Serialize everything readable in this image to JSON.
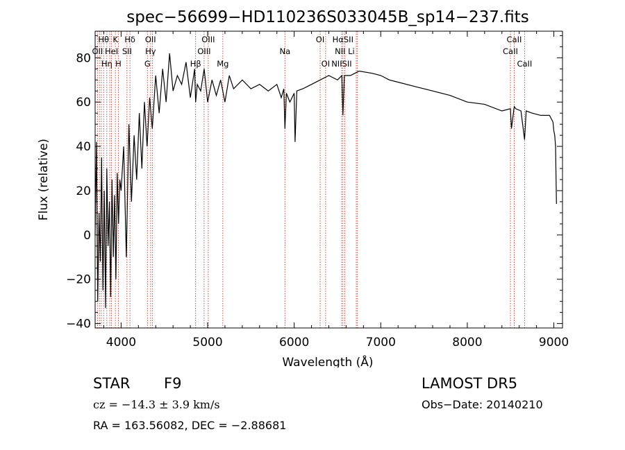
{
  "chart_data": {
    "type": "line",
    "title": "spec−56699−HD110236S033045B_sp14−237.fits",
    "xlabel": "Wavelength (Å)",
    "ylabel": "Flux (relative)",
    "xlim": [
      3700,
      9100
    ],
    "ylim": [
      -42,
      92
    ],
    "x_ticks": [
      4000,
      5000,
      6000,
      7000,
      8000,
      9000
    ],
    "y_ticks": [
      -40,
      -20,
      0,
      20,
      40,
      60,
      80
    ],
    "grid": false,
    "series": [
      {
        "x": [
          3700,
          3715,
          3730,
          3745,
          3760,
          3775,
          3790,
          3805,
          3820,
          3835,
          3850,
          3865,
          3880,
          3895,
          3910,
          3925,
          3940,
          3955,
          3970,
          3985,
          4000,
          4030,
          4060,
          4090,
          4120,
          4150,
          4180,
          4210,
          4240,
          4270,
          4300,
          4330,
          4360,
          4400,
          4440,
          4480,
          4520,
          4560,
          4600,
          4650,
          4700,
          4750,
          4800,
          4850,
          4861,
          4880,
          4920,
          4960,
          5000,
          5050,
          5100,
          5150,
          5200,
          5250,
          5300,
          5400,
          5500,
          5600,
          5700,
          5800,
          5850,
          5880,
          5893,
          5910,
          5950,
          6000,
          6010,
          6030,
          6100,
          6200,
          6300,
          6400,
          6500,
          6550,
          6563,
          6580,
          6650,
          6750,
          6900,
          7000,
          7100,
          7200,
          7400,
          7600,
          7800,
          8000,
          8200,
          8400,
          8498,
          8510,
          8542,
          8560,
          8620,
          8662,
          8680,
          8750,
          8850,
          8900,
          8950,
          8990,
          9000,
          9010,
          9020,
          9030
        ],
        "y": [
          0,
          42,
          -30,
          10,
          -12,
          35,
          -25,
          20,
          -33,
          30,
          -5,
          15,
          -28,
          25,
          -10,
          18,
          -20,
          28,
          5,
          25,
          20,
          40,
          -10,
          50,
          15,
          45,
          25,
          55,
          30,
          60,
          40,
          62,
          48,
          72,
          55,
          75,
          60,
          82,
          65,
          72,
          68,
          78,
          62,
          75,
          60,
          68,
          65,
          75,
          60,
          70,
          63,
          70,
          60,
          72,
          66,
          70,
          66,
          68,
          65,
          68,
          62,
          66,
          48,
          64,
          60,
          64,
          42,
          65,
          66,
          68,
          70,
          72,
          70,
          72,
          54,
          72,
          72,
          74,
          73,
          72,
          70,
          69,
          67,
          65,
          63,
          60,
          59,
          56,
          57,
          48,
          58,
          57,
          56,
          43,
          56,
          55,
          54,
          54,
          54,
          51,
          47,
          45,
          40,
          14
        ]
      }
    ],
    "line_markers": [
      {
        "label": "Hθ",
        "x": 3798,
        "row": 1
      },
      {
        "label": "K",
        "x": 3934,
        "row": 1
      },
      {
        "label": "Hδ",
        "x": 4102,
        "row": 1
      },
      {
        "label": "OII",
        "x": 4340,
        "row": 1
      },
      {
        "label": "OIII",
        "x": 5007,
        "row": 1
      },
      {
        "label": "OI",
        "x": 6300,
        "row": 1
      },
      {
        "label": "HαSII",
        "x": 6563,
        "row": 1
      },
      {
        "label": "CaII",
        "x": 8542,
        "row": 1
      },
      {
        "label": "OII",
        "x": 3727,
        "row": 2
      },
      {
        "label": "HeI",
        "x": 3889,
        "row": 2
      },
      {
        "label": "SII",
        "x": 4068,
        "row": 2
      },
      {
        "label": "Hγ",
        "x": 4341,
        "row": 2
      },
      {
        "label": "OIII",
        "x": 4959,
        "row": 2
      },
      {
        "label": "Na",
        "x": 5893,
        "row": 2
      },
      {
        "label": "NII Li",
        "x": 6584,
        "row": 2
      },
      {
        "label": "CaII",
        "x": 8498,
        "row": 2
      },
      {
        "label": "Hη",
        "x": 3835,
        "row": 3
      },
      {
        "label": "H",
        "x": 3968,
        "row": 3
      },
      {
        "label": "G",
        "x": 4304,
        "row": 3
      },
      {
        "label": "Hβ",
        "x": 4861,
        "row": 3
      },
      {
        "label": "Mg",
        "x": 5175,
        "row": 3
      },
      {
        "label": "OI",
        "x": 6363,
        "row": 3
      },
      {
        "label": "NIISII",
        "x": 6548,
        "row": 3
      },
      {
        "label": "CaII",
        "x": 8662,
        "row": 3
      }
    ],
    "line_x": [
      3727,
      3750,
      3771,
      3798,
      3835,
      3869,
      3889,
      3934,
      3968,
      4068,
      4102,
      4304,
      4341,
      4363,
      4861,
      4959,
      5007,
      5175,
      5893,
      6300,
      6363,
      6548,
      6563,
      6584,
      6717,
      6731,
      8498,
      8542,
      8662
    ]
  },
  "info": {
    "object_type": "STAR",
    "subclass": "F9",
    "survey": "LAMOST  DR5",
    "cz": "cz = −14.3 ± 3.9 km/s",
    "obs_date": "Obs−Date: 20140210",
    "coords": "RA = 163.56082, DEC =  −2.88681"
  }
}
